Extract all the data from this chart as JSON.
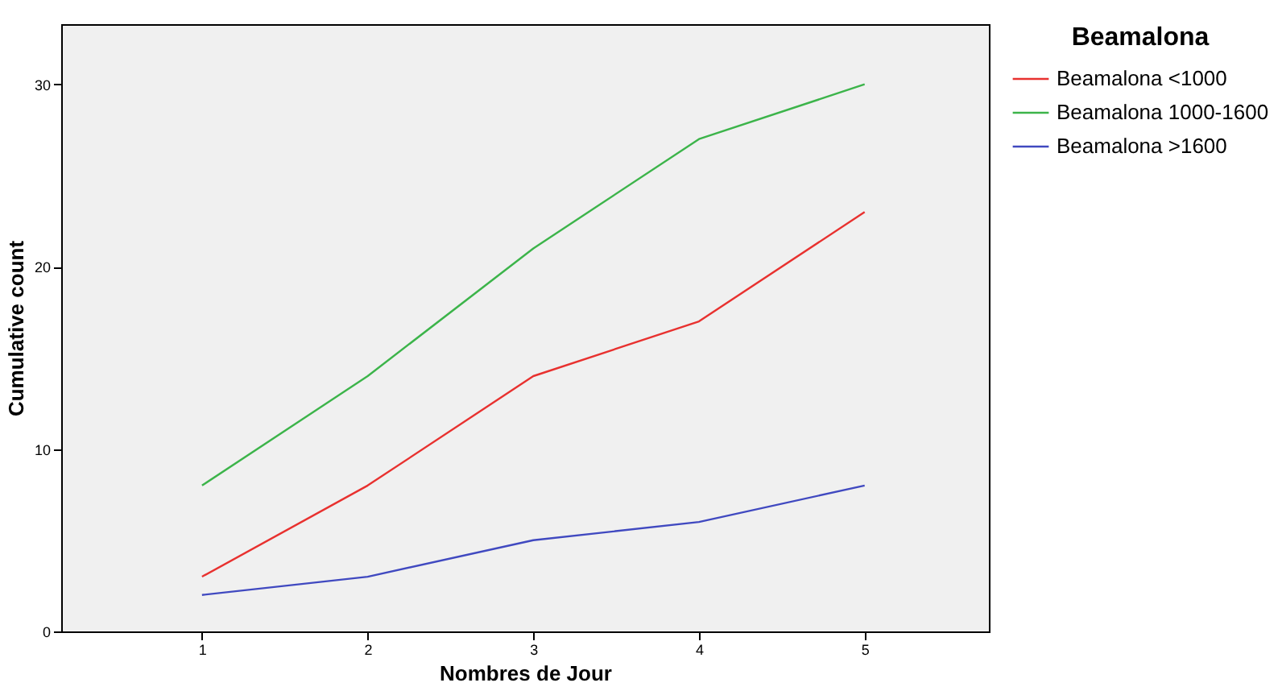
{
  "chart_data": {
    "type": "line",
    "xlabel": "Nombres de Jour",
    "ylabel": "Cumulative count",
    "legend_title": "Beamalona",
    "legend": "right",
    "x": [
      1,
      2,
      3,
      4,
      5
    ],
    "xlim": [
      0.15,
      5.75
    ],
    "xticks": [
      1,
      2,
      3,
      4,
      5
    ],
    "ylim": [
      0,
      33.3
    ],
    "yticks": [
      0,
      10,
      20,
      30
    ],
    "series": [
      {
        "name": "Beamalona <1000",
        "color": "#e8312f",
        "values": [
          3,
          8,
          14,
          17,
          23
        ]
      },
      {
        "name": "Beamalona 1000-1600",
        "color": "#3cb44a",
        "values": [
          8,
          14,
          21,
          27,
          30
        ]
      },
      {
        "name": "Beamalona >1600",
        "color": "#4049c0",
        "values": [
          2,
          3,
          5,
          6,
          8
        ]
      }
    ]
  }
}
